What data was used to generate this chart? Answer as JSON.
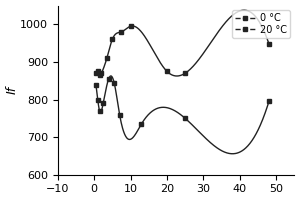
{
  "title": "",
  "ylabel": "If",
  "xlabel": "",
  "xlim": [
    -10,
    55
  ],
  "ylim": [
    600,
    1050
  ],
  "yticks": [
    600,
    700,
    800,
    900,
    1000
  ],
  "xticks": [
    -10,
    0,
    10,
    20,
    30,
    40,
    50
  ],
  "series0": {
    "label": "0 °C",
    "x": [
      0.5,
      1.0,
      1.5,
      2.5,
      4.0,
      5.5,
      7.0,
      13.0,
      25.0,
      48.0
    ],
    "y": [
      840,
      800,
      770,
      790,
      855,
      845,
      760,
      735,
      750,
      795
    ],
    "color": "#222222",
    "marker": "s",
    "marker_size": 3,
    "linestyle": "-"
  },
  "series1": {
    "label": "20 °C",
    "x": [
      0.5,
      1.0,
      1.5,
      2.0,
      3.5,
      5.0,
      7.5,
      10.0,
      20.0,
      25.0,
      48.0
    ],
    "y": [
      870,
      875,
      865,
      870,
      910,
      960,
      980,
      995,
      875,
      870,
      948
    ],
    "color": "#222222",
    "marker": "s",
    "marker_size": 3,
    "linestyle": "-"
  },
  "background_color": "#ffffff",
  "legend_loc": "upper right",
  "font_size": 8
}
